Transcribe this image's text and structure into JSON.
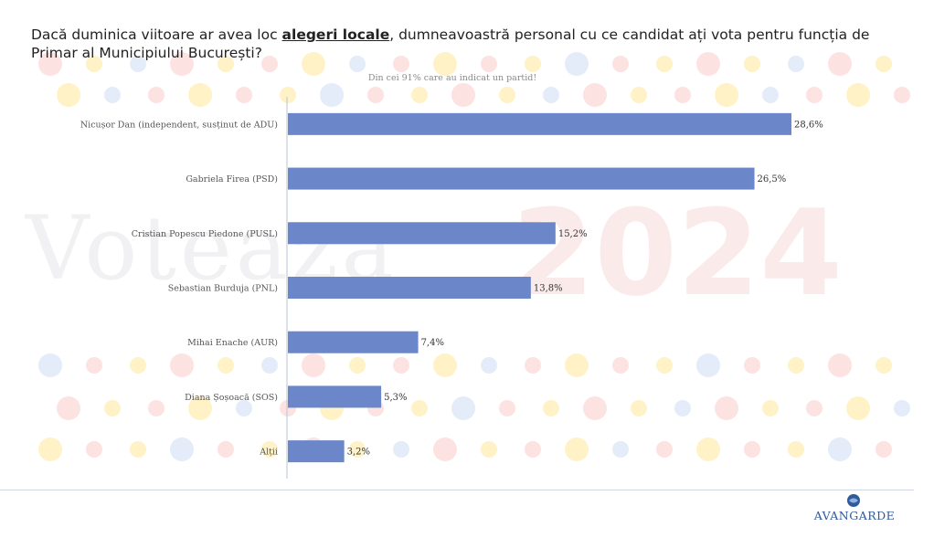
{
  "title": {
    "before": "Dacă duminica viitoare ar avea loc ",
    "highlight": "alegeri locale",
    "after": ", dumneavoastră personal cu ce candidat ați vota pentru funcția de Primar al Municipiului București?"
  },
  "watermark": {
    "word": "Voteaza",
    "year": "2024"
  },
  "colors": {
    "bar": "#6b87c9",
    "axis": "#b9c4d9"
  },
  "logo": {
    "text": "AVANGARDE"
  },
  "chart_data": {
    "type": "bar",
    "orientation": "horizontal",
    "title": "",
    "subtitle": "Din cei 91% care au indicat un partid!",
    "categories": [
      "Nicușor Dan (independent, susținut de ADU)",
      "Gabriela Firea (PSD)",
      "Cristian Popescu Piedone (PUSL)",
      "Sebastian Burduja (PNL)",
      "Mihai Enache (AUR)",
      "Diana Șoșoacă (SOS)",
      "Alții"
    ],
    "values": [
      28.6,
      26.5,
      15.2,
      13.8,
      7.4,
      5.3,
      3.2
    ],
    "value_labels": [
      "28,6%",
      "26,5%",
      "15,2%",
      "13,8%",
      "7,4%",
      "5,3%",
      "3,2%"
    ],
    "xlim": [
      0,
      30
    ],
    "grid": false,
    "legend": "none"
  }
}
